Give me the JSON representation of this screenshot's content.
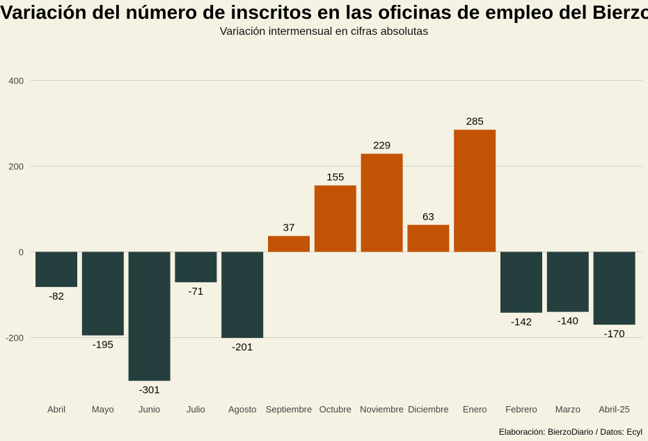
{
  "chart_data": {
    "type": "bar",
    "title": "Variación del número de inscritos en las oficinas de empleo del Bierzo",
    "subtitle": "Variación intermensual en cifras absolutas",
    "caption": "Elaboración: BierzoDiario / Datos: Ecyl",
    "categories": [
      "Abril",
      "Mayo",
      "Junio",
      "Julio",
      "Agosto",
      "Septiembre",
      "Octubre",
      "Noviembre",
      "Diciembre",
      "Enero",
      "Febrero",
      "Marzo",
      "Abril-25"
    ],
    "values": [
      -82,
      -195,
      -301,
      -71,
      -201,
      37,
      155,
      229,
      63,
      285,
      -142,
      -140,
      -170
    ],
    "data_labels": [
      "-82",
      "-195",
      "-301",
      "-71",
      "-201",
      "37",
      "155",
      "229",
      "63",
      "285",
      "-142",
      "-140",
      "-170"
    ],
    "y_ticks": [
      -200,
      0,
      200,
      400
    ],
    "y_tick_labels": [
      "-200",
      "0",
      "200",
      "400"
    ],
    "ylim": [
      -340,
      420
    ],
    "xlabel": "",
    "ylabel": "",
    "grid": true,
    "legend": "none",
    "colors": {
      "positive": "#c25304",
      "negative": "#243f3e",
      "background": "#f5f2e4",
      "grid": "#cfd3c4"
    }
  }
}
